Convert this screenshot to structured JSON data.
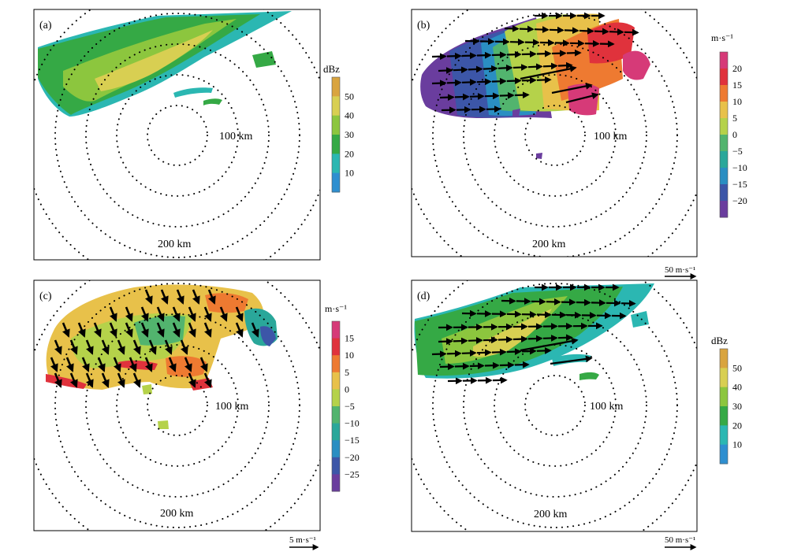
{
  "panels": [
    {
      "id": "a",
      "label": "(a)",
      "ring_labels": {
        "inner": "100 km",
        "outer": "200 km"
      },
      "colorbar": {
        "unit": "dBz",
        "ticks": [
          "50",
          "40",
          "30",
          "20",
          "10"
        ],
        "colors": [
          "#d9a43f",
          "#d8cf52",
          "#8cc63e",
          "#35a945",
          "#2bb7b2",
          "#2e8fd0"
        ]
      },
      "scale_label": null
    },
    {
      "id": "b",
      "label": "(b)",
      "ring_labels": {
        "inner": "100 km",
        "outer": "200 km"
      },
      "colorbar": {
        "unit": "m·s⁻¹",
        "ticks": [
          "20",
          "15",
          "10",
          "5",
          "0",
          "−5",
          "−10",
          "−15",
          "−20"
        ],
        "colors": [
          "#d63a78",
          "#e0323c",
          "#ee7a31",
          "#e8c14a",
          "#b5d24a",
          "#52b46e",
          "#2aa79a",
          "#2a8ec2",
          "#3c56a8",
          "#6a3d9e"
        ]
      },
      "scale_label": "50 m·s⁻¹"
    },
    {
      "id": "c",
      "label": "(c)",
      "ring_labels": {
        "inner": "100 km",
        "outer": "200 km"
      },
      "colorbar": {
        "unit": "m·s⁻¹",
        "ticks": [
          "15",
          "10",
          "5",
          "0",
          "−5",
          "−10",
          "−15",
          "−20",
          "−25"
        ],
        "colors": [
          "#d63a78",
          "#e0323c",
          "#ee7a31",
          "#e8c14a",
          "#b5d24a",
          "#52b46e",
          "#2aa79a",
          "#2a8ec2",
          "#3c56a8",
          "#6a3d9e"
        ]
      },
      "scale_label": "5 m·s⁻¹"
    },
    {
      "id": "d",
      "label": "(d)",
      "ring_labels": {
        "inner": "100 km",
        "outer": "200 km"
      },
      "colorbar": {
        "unit": "dBz",
        "ticks": [
          "50",
          "40",
          "30",
          "20",
          "10"
        ],
        "colors": [
          "#d9a43f",
          "#d8cf52",
          "#8cc63e",
          "#35a945",
          "#2bb7b2",
          "#2e8fd0"
        ]
      },
      "scale_label": "50 m·s⁻¹"
    }
  ]
}
